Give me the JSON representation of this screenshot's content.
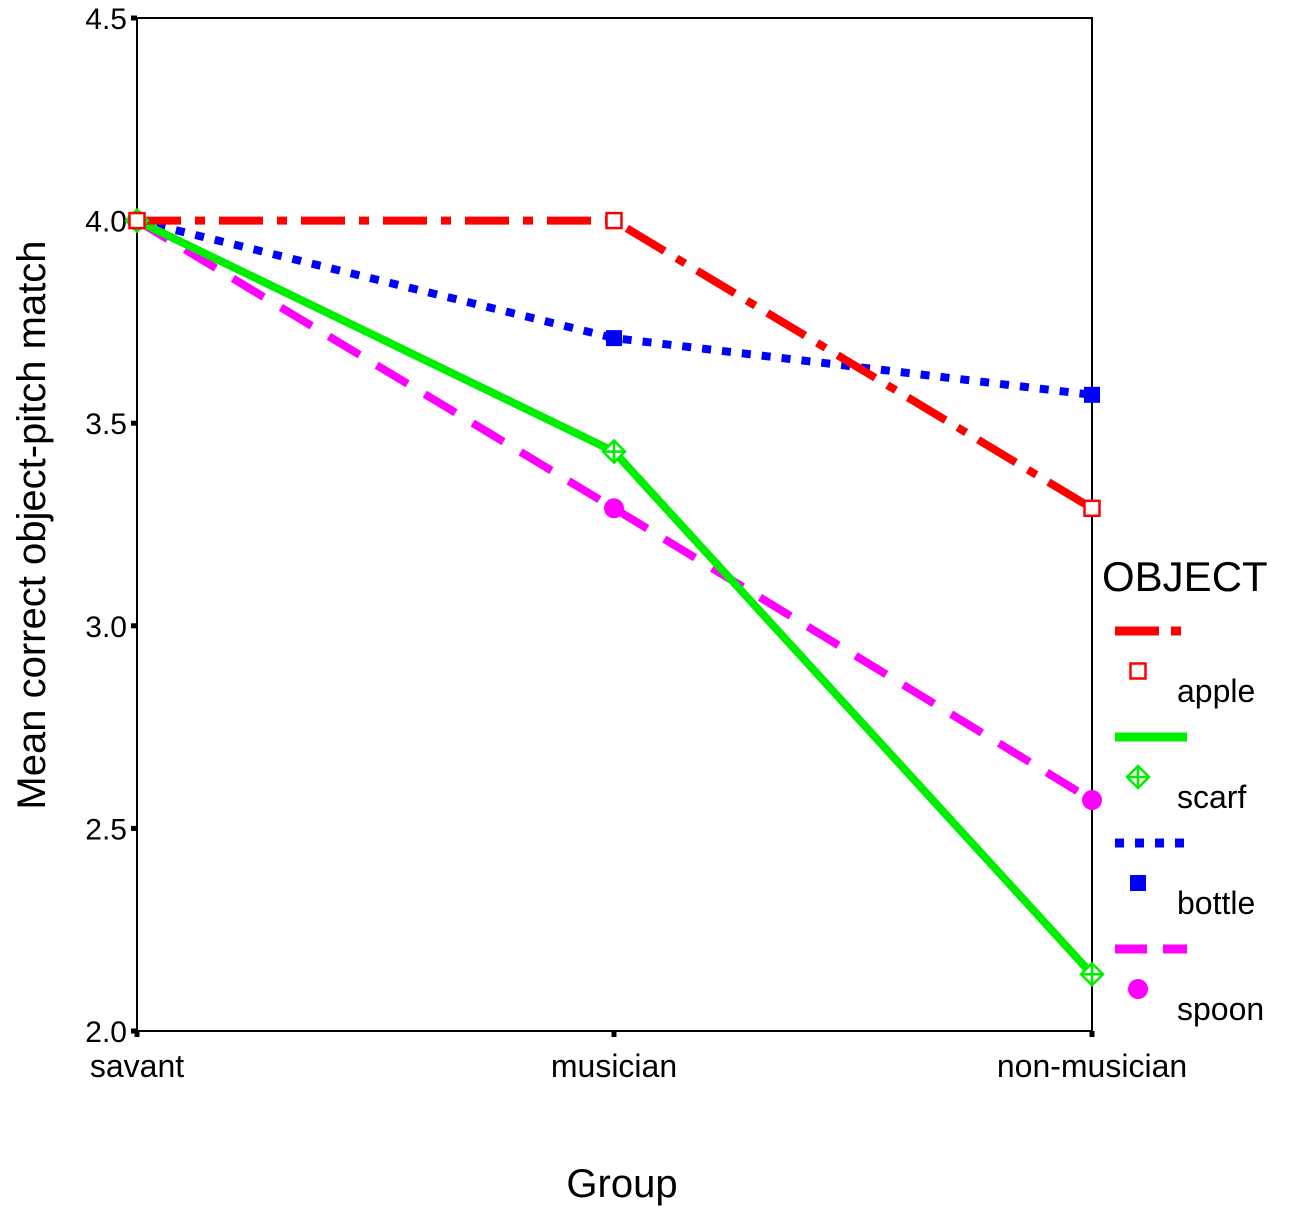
{
  "chart_data": {
    "type": "line",
    "xlabel": "Group",
    "ylabel": "Mean correct object-pitch match",
    "categories": [
      "savant",
      "musician",
      "non-musician"
    ],
    "ylim": [
      2.0,
      4.5
    ],
    "yticks": [
      "2.0",
      "2.5",
      "3.0",
      "3.5",
      "4.0",
      "4.5"
    ],
    "grid": false,
    "legend": {
      "title": "OBJECT",
      "placement": "right"
    },
    "series": [
      {
        "name": "apple",
        "values": [
          4.0,
          4.0,
          3.29
        ],
        "color": "#ff0000",
        "dash": "dash-dot",
        "marker": "open-square"
      },
      {
        "name": "scarf",
        "values": [
          4.0,
          3.43,
          2.14
        ],
        "color": "#00ee00",
        "dash": "solid",
        "marker": "diamond-plus"
      },
      {
        "name": "bottle",
        "values": [
          4.0,
          3.71,
          3.57
        ],
        "color": "#0000ff",
        "dash": "dotted",
        "marker": "filled-square"
      },
      {
        "name": "spoon",
        "values": [
          4.0,
          3.29,
          2.57
        ],
        "color": "#ff00ff",
        "dash": "dashed",
        "marker": "filled-circle"
      }
    ]
  }
}
